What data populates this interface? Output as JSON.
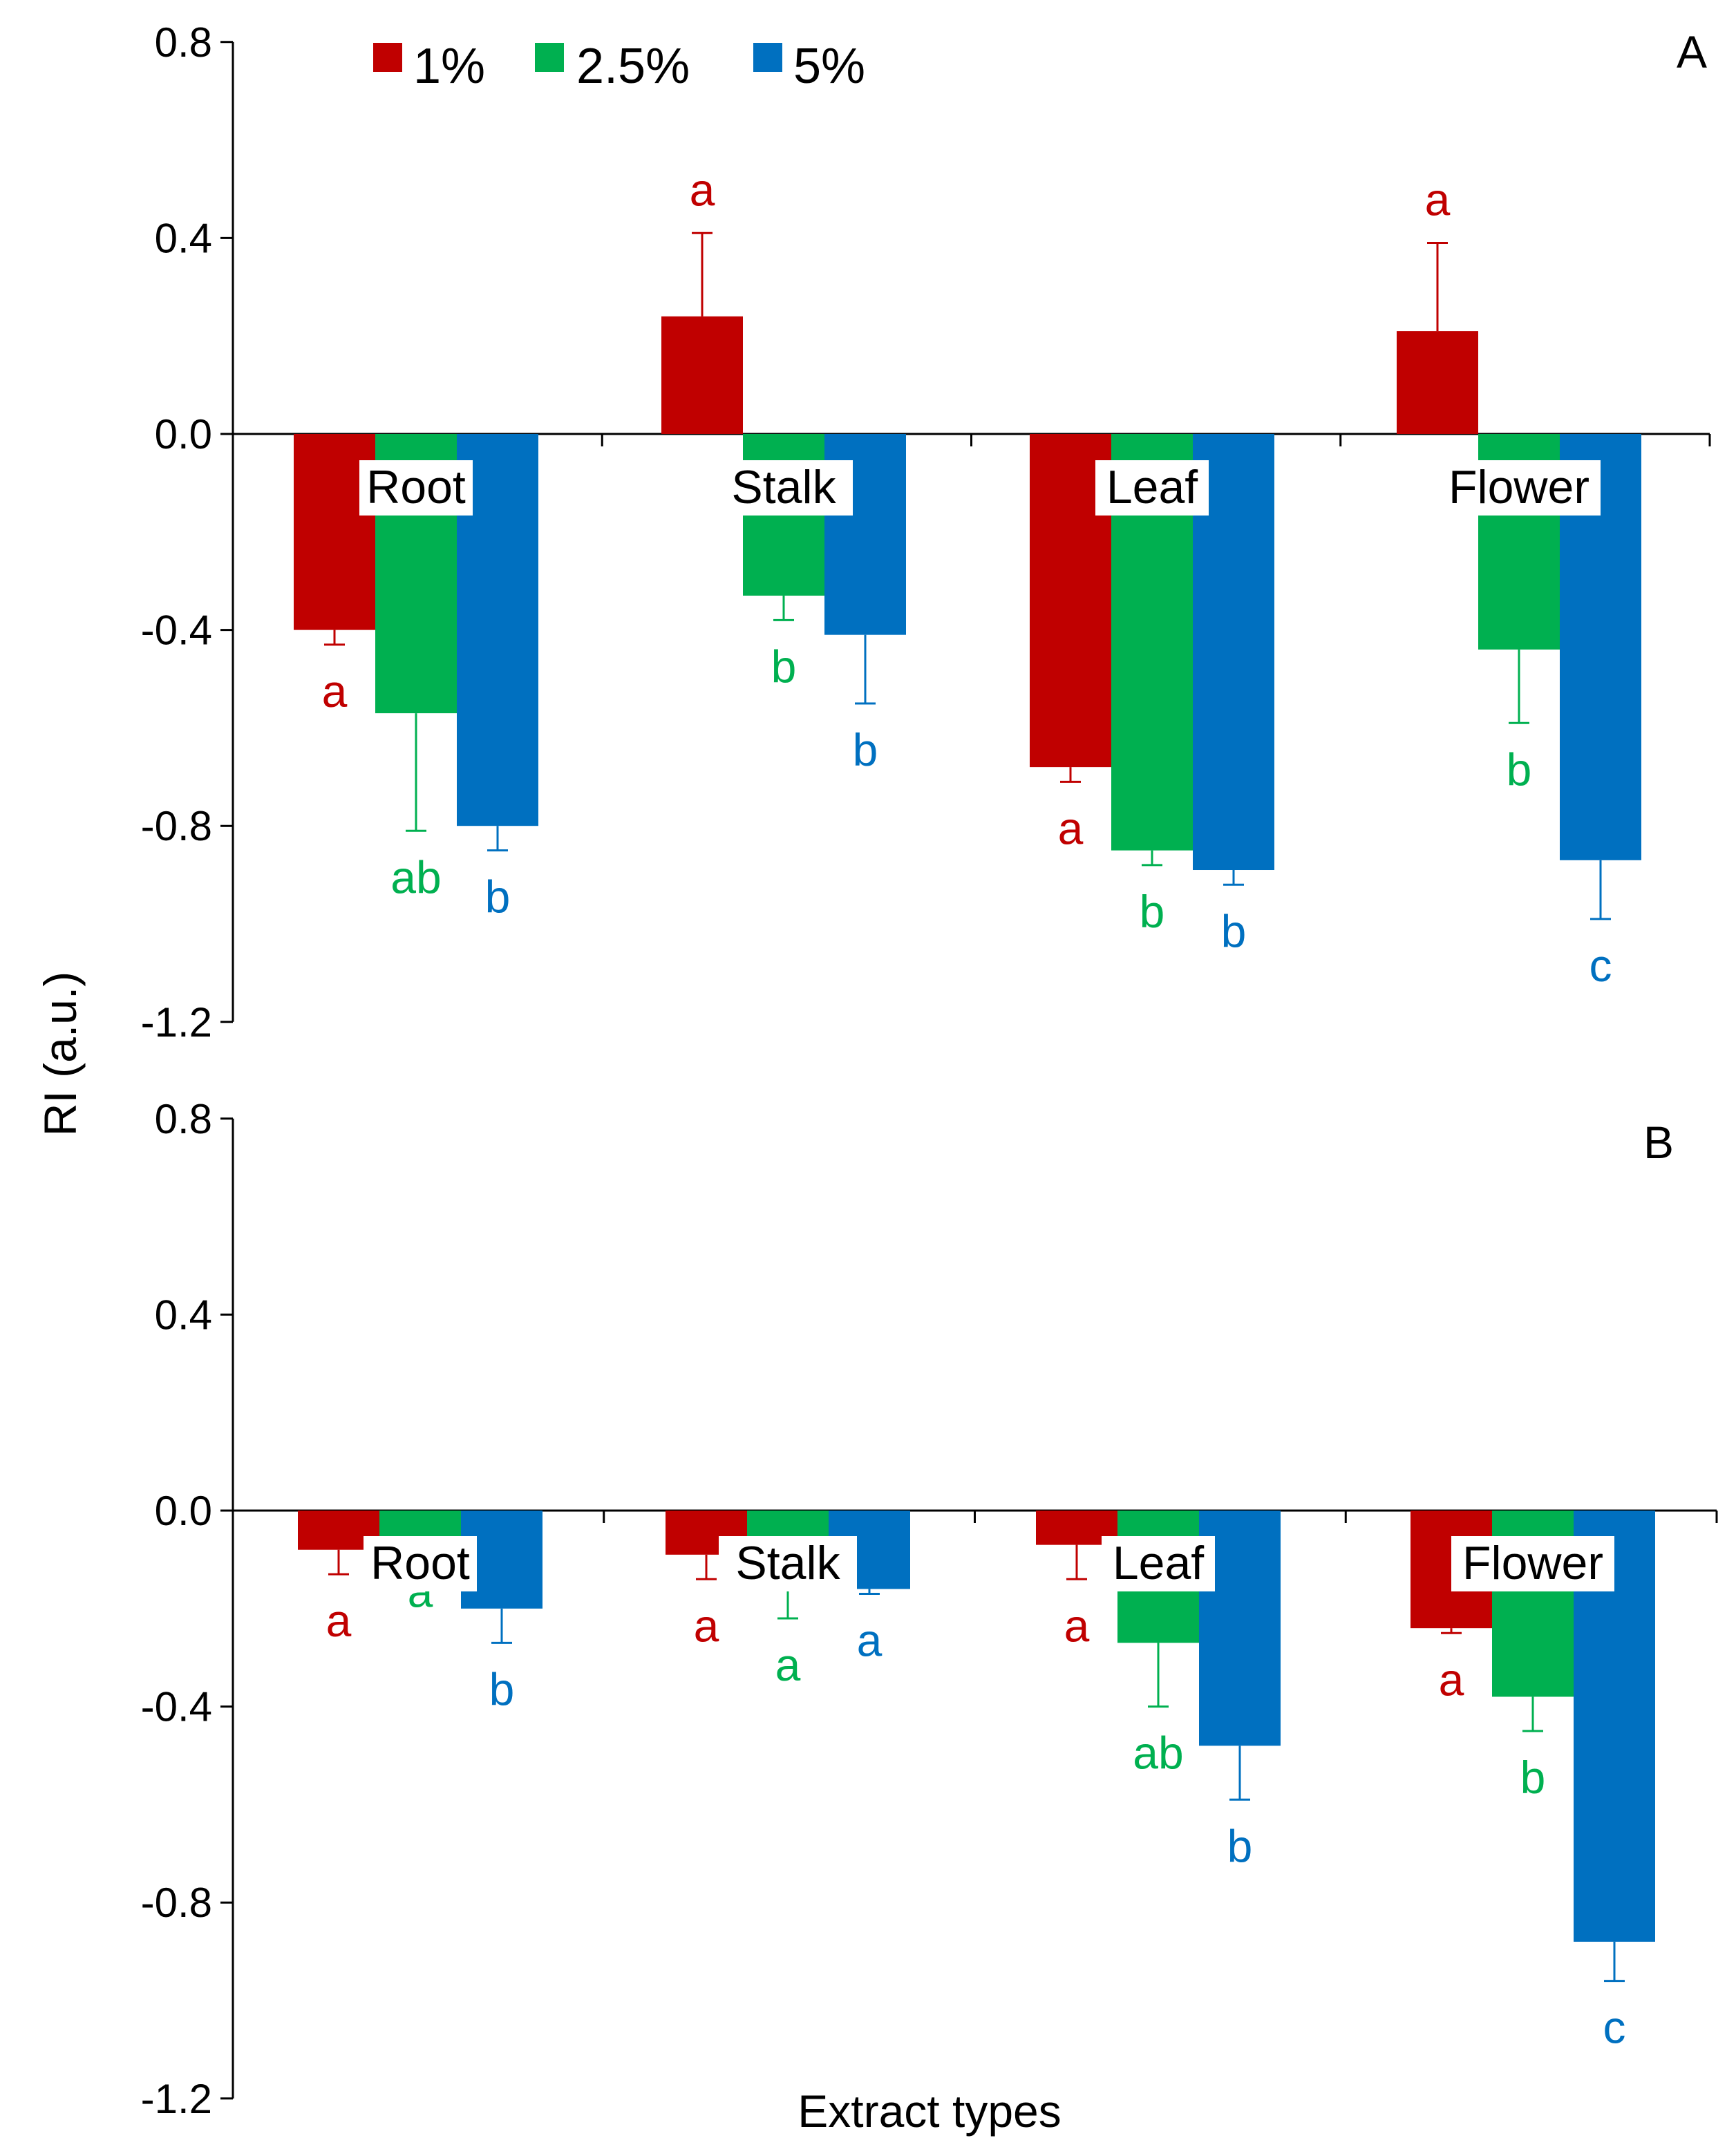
{
  "chart_data": [
    {
      "type": "bar",
      "panel": "A",
      "categories": [
        "Root",
        "Stalk",
        "Leaf",
        "Flower"
      ],
      "ylabel": "RI (a.u.)",
      "xlabel": "Extract types",
      "ylim": [
        -1.2,
        0.8
      ],
      "yticks": [
        "0.8",
        "0.4",
        "0.0",
        "-0.4",
        "-0.8",
        "-1.2"
      ],
      "series": [
        {
          "name": "1%",
          "color": "#C00000",
          "values": [
            -0.4,
            0.24,
            -0.68,
            0.21
          ],
          "errors": [
            0.03,
            0.17,
            0.03,
            0.18
          ],
          "letters": [
            "a",
            "a",
            "a",
            "a"
          ]
        },
        {
          "name": "2.5%",
          "color": "#00B050",
          "values": [
            -0.57,
            -0.33,
            -0.85,
            -0.44
          ],
          "errors": [
            0.24,
            0.05,
            0.03,
            0.15
          ],
          "letters": [
            "ab",
            "b",
            "b",
            "b"
          ]
        },
        {
          "name": "5%",
          "color": "#0070C0",
          "values": [
            -0.8,
            -0.41,
            -0.89,
            -0.87
          ],
          "errors": [
            0.05,
            0.14,
            0.03,
            0.12
          ],
          "letters": [
            "b",
            "b",
            "b",
            "c"
          ]
        }
      ]
    },
    {
      "type": "bar",
      "panel": "B",
      "categories": [
        "Root",
        "Stalk",
        "Leaf",
        "Flower"
      ],
      "ylabel": "RI (a.u.)",
      "xlabel": "Extract types",
      "ylim": [
        -1.2,
        0.8
      ],
      "yticks": [
        "0.8",
        "0.4",
        "0.0",
        "-0.4",
        "-0.8",
        "-1.2"
      ],
      "series": [
        {
          "name": "1%",
          "color": "#C00000",
          "values": [
            -0.08,
            -0.09,
            -0.07,
            -0.24
          ],
          "errors": [
            0.05,
            0.05,
            0.07,
            0.01
          ],
          "letters": [
            "a",
            "a",
            "a",
            "a"
          ]
        },
        {
          "name": "2.5%",
          "color": "#00B050",
          "values": [
            -0.07,
            -0.07,
            -0.27,
            -0.38
          ],
          "errors": [
            0.0,
            0.15,
            0.13,
            0.07
          ],
          "letters": [
            "a",
            "a",
            "ab",
            "b"
          ]
        },
        {
          "name": "5%",
          "color": "#0070C0",
          "values": [
            -0.2,
            -0.16,
            -0.48,
            -0.88
          ],
          "errors": [
            0.07,
            0.01,
            0.11,
            0.08
          ],
          "letters": [
            "b",
            "a",
            "b",
            "c"
          ]
        }
      ]
    }
  ],
  "legend": [
    {
      "label": "1%",
      "color": "#C00000"
    },
    {
      "label": "2.5%",
      "color": "#00B050"
    },
    {
      "label": "5%",
      "color": "#0070C0"
    }
  ],
  "panel_labels": [
    "A",
    "B"
  ],
  "y_axis_title": "RI (a.u.)",
  "x_axis_title": "Extract types"
}
